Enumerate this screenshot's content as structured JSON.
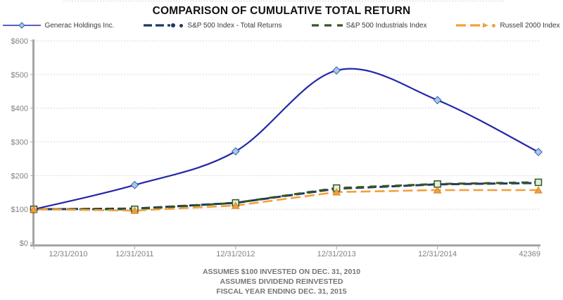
{
  "title": "COMPARISON OF CUMULATIVE TOTAL RETURN",
  "footer": {
    "line1": "ASSUMES $100 INVESTED ON DEC. 31, 2010",
    "line2": "ASSUMES DIVIDEND REINVESTED",
    "line3": "FISCAL YEAR ENDING DEC. 31, 2015"
  },
  "colors": {
    "grid": "#D9D9D9",
    "axis": "#A6A6A6",
    "axis_label": "#808080",
    "title": "#121212",
    "footer": "#757575"
  },
  "chart_data": {
    "type": "line",
    "title": "COMPARISON OF CUMULATIVE TOTAL RETURN",
    "categories": [
      "12/31/2010",
      "12/31/2011",
      "12/31/2012",
      "12/31/2013",
      "12/31/2014",
      "42369"
    ],
    "ylim": [
      0,
      600
    ],
    "ytick_step": 100,
    "ytick_labels": [
      "$0",
      "$100",
      "$200",
      "$300",
      "$400",
      "$500",
      "$600"
    ],
    "grid": "dotted-horizontal",
    "legend_position": "top",
    "series": [
      {
        "name": "Generac Holdings Inc.",
        "values": [
          100,
          172,
          272,
          512,
          424,
          270
        ],
        "color": "#2328A8",
        "marker": "diamond",
        "marker_fill": "#A5C8EE",
        "marker_stroke": "#3A5FA8",
        "style": "smooth-solid",
        "width": 2.2,
        "dash": "",
        "legend_bullet": false
      },
      {
        "name": "S&P 500 Index - Total Returns",
        "values": [
          100,
          102,
          119,
          161,
          174,
          178
        ],
        "color": "#1F3864",
        "marker": "circle",
        "marker_fill": "#1F3864",
        "marker_stroke": "#1F3864",
        "style": "dashed",
        "width": 3,
        "dash": "12 5",
        "legend_bullet": true
      },
      {
        "name": "S&P 500 Industrials Index",
        "values": [
          100,
          100,
          119,
          163,
          175,
          180
        ],
        "color": "#375623",
        "marker": "square",
        "marker_fill": "#DFF0D8",
        "marker_stroke": "#375623",
        "style": "dashed",
        "width": 3,
        "dash": "10 8",
        "legend_bullet": false
      },
      {
        "name": "Russell 2000 Index",
        "values": [
          100,
          96,
          111,
          151,
          157,
          157
        ],
        "color": "#F1A03C",
        "marker": "triangle",
        "marker_fill": "#F1A03C",
        "marker_stroke": "#D5861F",
        "style": "dashed",
        "width": 2.6,
        "dash": "14 6",
        "legend_bullet": true
      }
    ]
  }
}
